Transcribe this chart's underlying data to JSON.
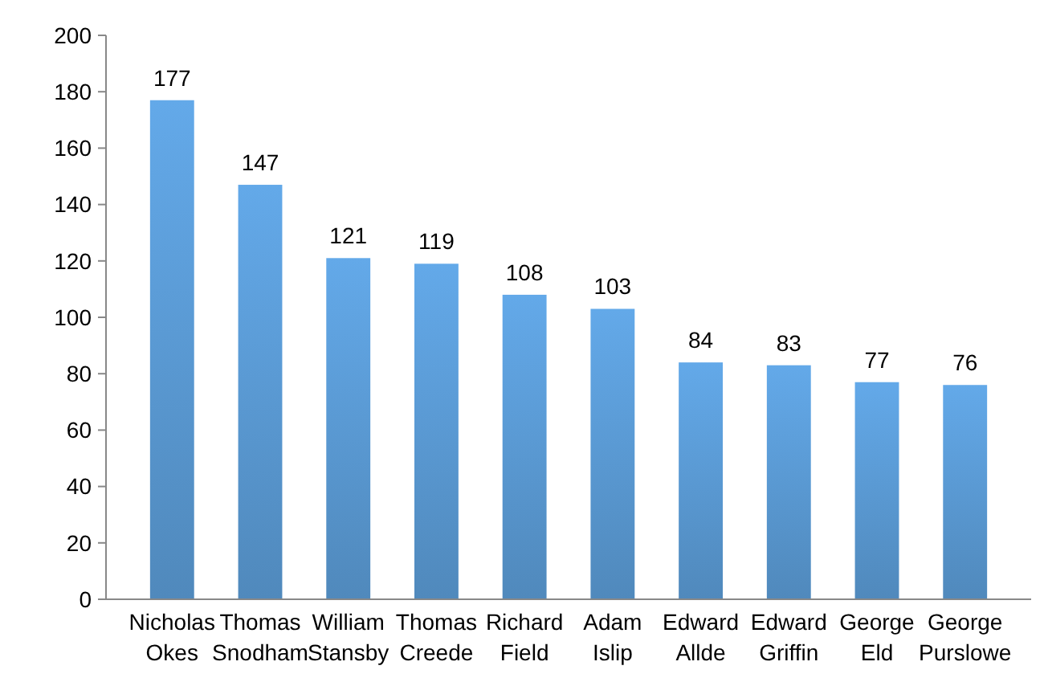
{
  "chart_data": {
    "type": "bar",
    "categories": [
      "Nicholas Okes",
      "Thomas Snodham",
      "William Stansby",
      "Thomas Creede",
      "Richard Field",
      "Adam Islip",
      "Edward Allde",
      "Edward Griffin",
      "George Eld",
      "George Purslowe"
    ],
    "values": [
      177,
      147,
      121,
      119,
      108,
      103,
      84,
      83,
      77,
      76
    ],
    "color": "#5b9bd5",
    "ylim": [
      0,
      200
    ],
    "yticks": [
      0,
      20,
      40,
      60,
      80,
      100,
      120,
      140,
      160,
      180,
      200
    ],
    "grid": false,
    "data_labels": true
  }
}
